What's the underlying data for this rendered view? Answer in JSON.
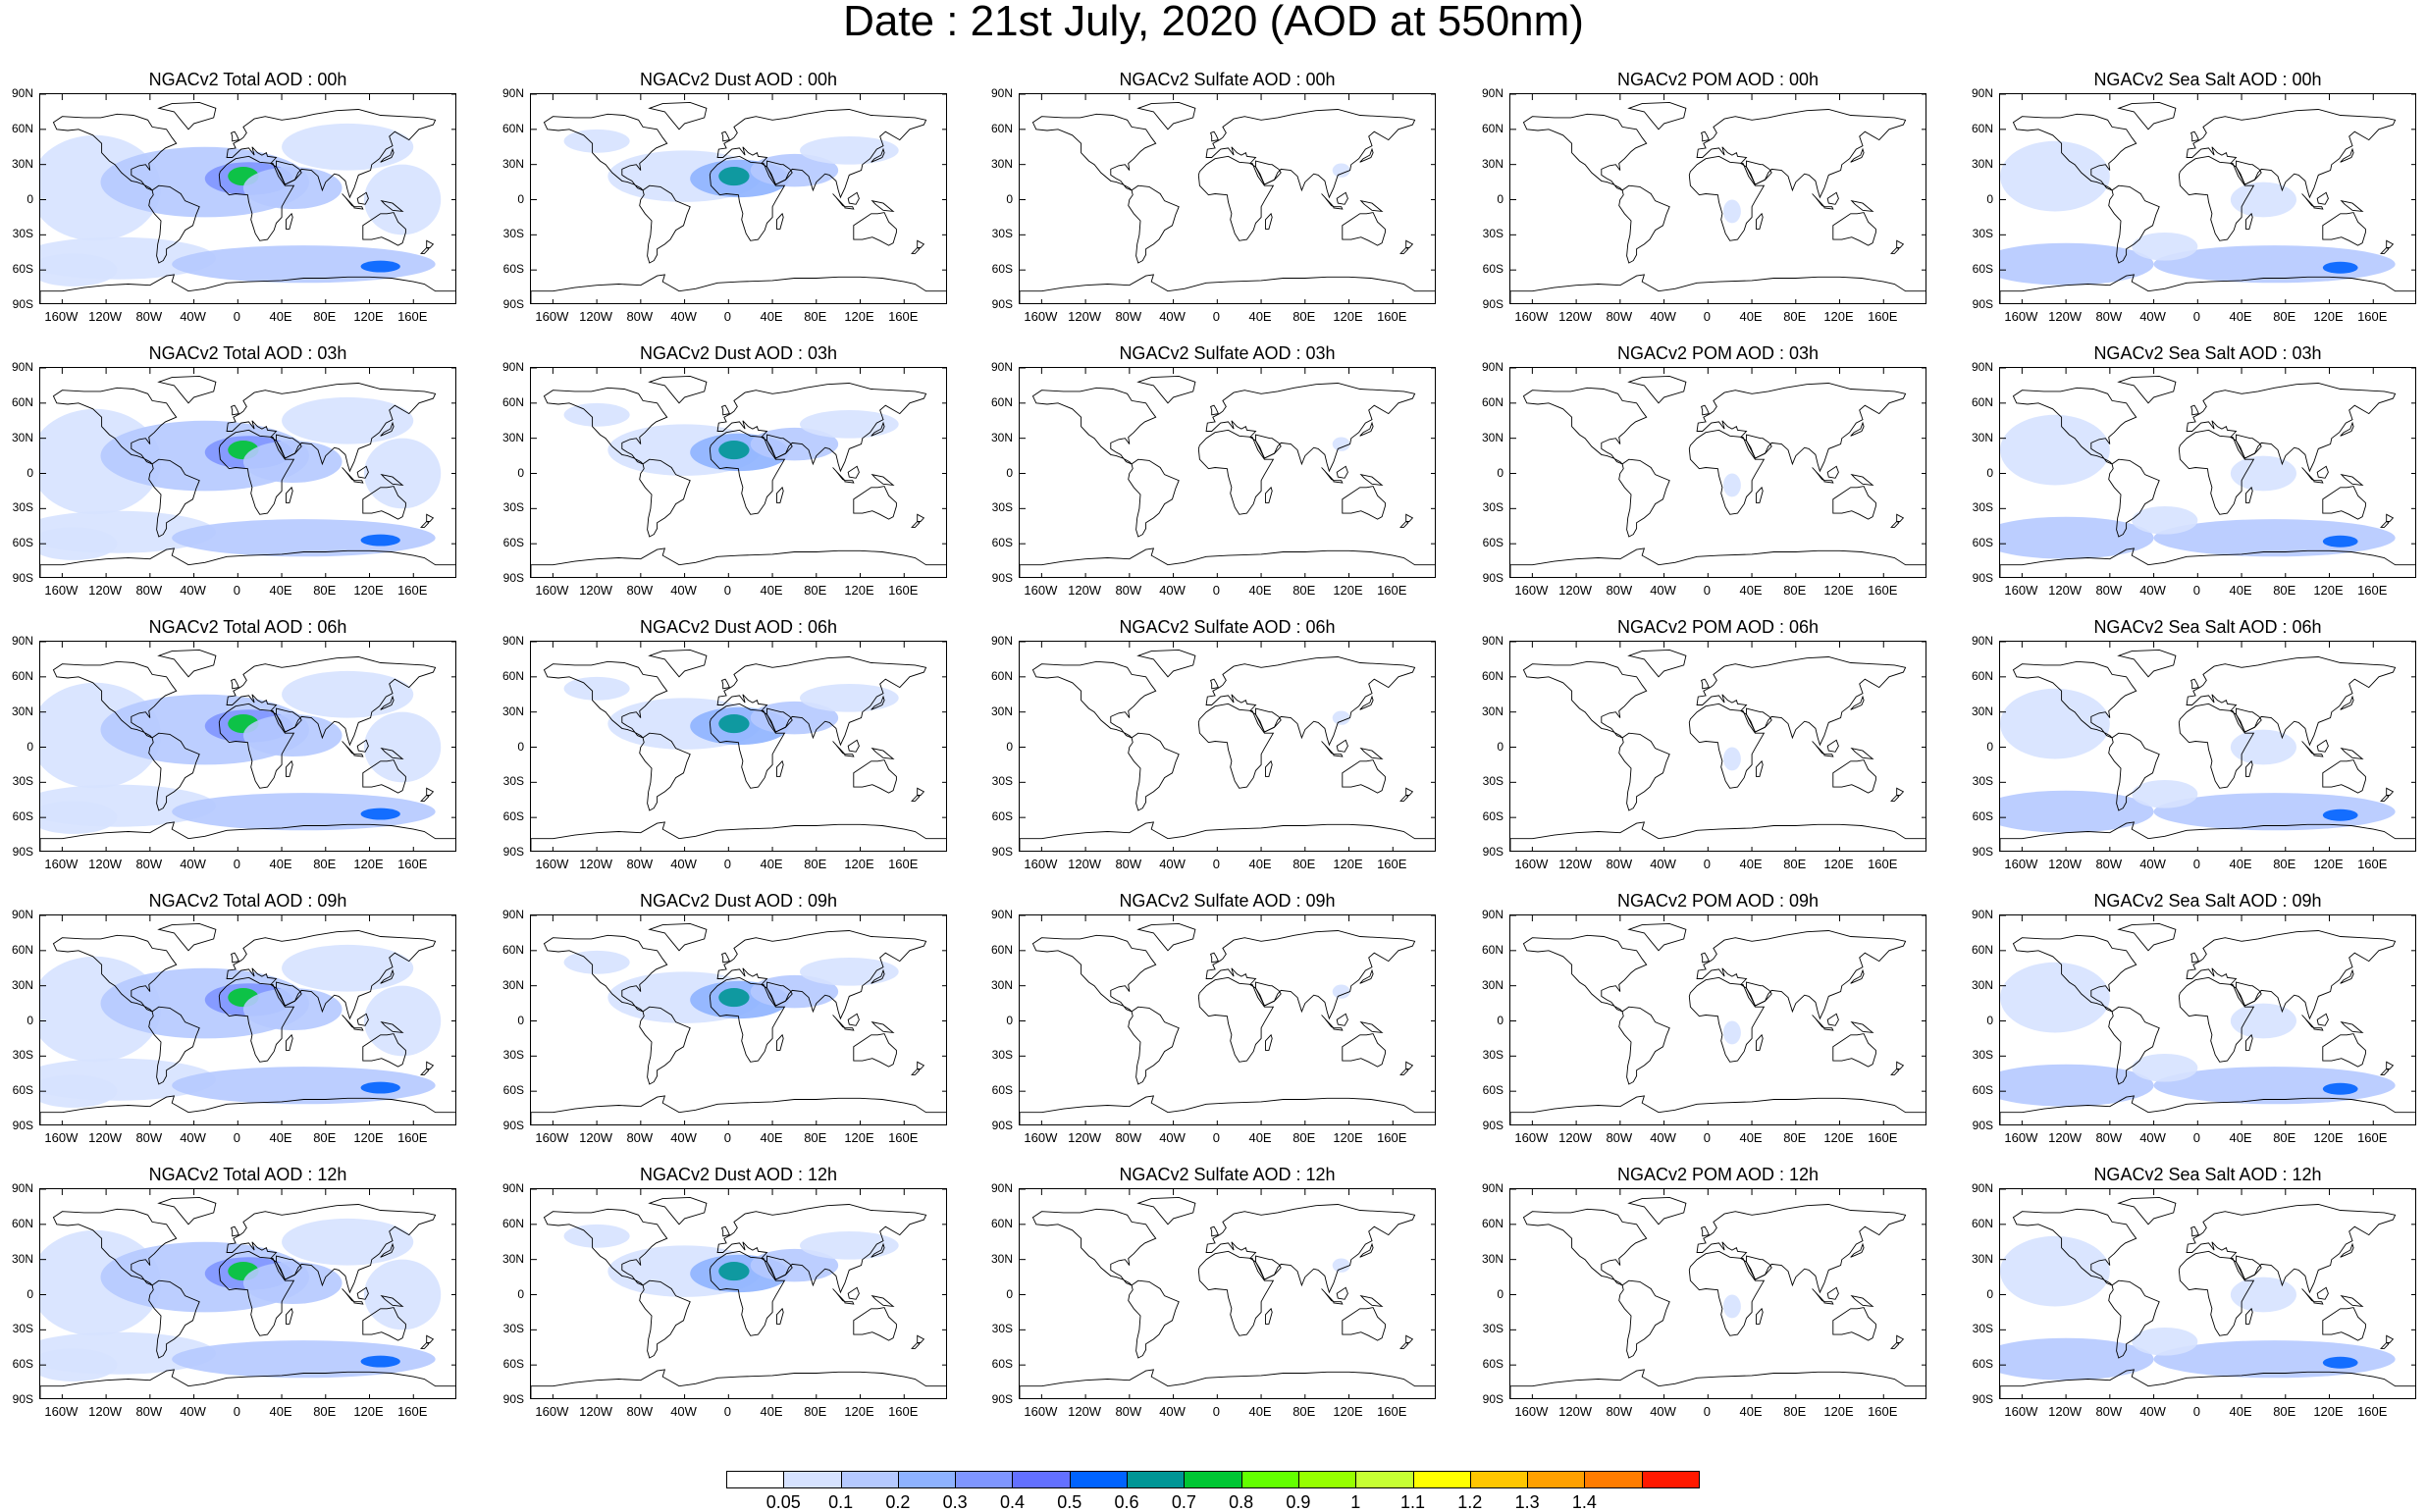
{
  "title": "Date : 21st July, 2020 (AOD at 550nm)",
  "lat_ticks": [
    "90N",
    "60N",
    "30N",
    "0",
    "30S",
    "60S",
    "90S"
  ],
  "lat_values": [
    90,
    60,
    30,
    0,
    -30,
    -60,
    -90
  ],
  "lon_ticks": [
    "160W",
    "120W",
    "80W",
    "40W",
    "0",
    "40E",
    "80E",
    "120E",
    "160E"
  ],
  "lon_values": [
    -160,
    -120,
    -80,
    -40,
    0,
    40,
    80,
    120,
    160
  ],
  "colorbar": {
    "labels": [
      "0.05",
      "0.1",
      "0.2",
      "0.3",
      "0.4",
      "0.5",
      "0.6",
      "0.7",
      "0.8",
      "0.9",
      "1",
      "1.1",
      "1.2",
      "1.3",
      "1.4"
    ],
    "colors": [
      "#ffffff",
      "#d6e2ff",
      "#b5c9ff",
      "#8eb2ff",
      "#7f96ff",
      "#6370ff",
      "#0063ff",
      "#009696",
      "#00c633",
      "#63ff00",
      "#96ff00",
      "#c6ff33",
      "#ffff00",
      "#ffc600",
      "#ffa000",
      "#ff7c00",
      "#ff1900"
    ]
  },
  "panels": [
    [
      {
        "title": "NGACv2 Total AOD : 00h",
        "species": "total"
      },
      {
        "title": "NGACv2 Dust AOD : 00h",
        "species": "dust"
      },
      {
        "title": "NGACv2 Sulfate AOD : 00h",
        "species": "sulfate"
      },
      {
        "title": "NGACv2 POM AOD : 00h",
        "species": "pom"
      },
      {
        "title": "NGACv2 Sea Salt AOD : 00h",
        "species": "seasalt"
      }
    ],
    [
      {
        "title": "NGACv2 Total AOD : 03h",
        "species": "total"
      },
      {
        "title": "NGACv2 Dust AOD : 03h",
        "species": "dust"
      },
      {
        "title": "NGACv2 Sulfate AOD : 03h",
        "species": "sulfate"
      },
      {
        "title": "NGACv2 POM AOD : 03h",
        "species": "pom"
      },
      {
        "title": "NGACv2 Sea Salt AOD : 03h",
        "species": "seasalt"
      }
    ],
    [
      {
        "title": "NGACv2 Total AOD : 06h",
        "species": "total"
      },
      {
        "title": "NGACv2 Dust AOD : 06h",
        "species": "dust"
      },
      {
        "title": "NGACv2 Sulfate AOD : 06h",
        "species": "sulfate"
      },
      {
        "title": "NGACv2 POM AOD : 06h",
        "species": "pom"
      },
      {
        "title": "NGACv2 Sea Salt AOD : 06h",
        "species": "seasalt"
      }
    ],
    [
      {
        "title": "NGACv2 Total AOD : 09h",
        "species": "total"
      },
      {
        "title": "NGACv2 Dust AOD : 09h",
        "species": "dust"
      },
      {
        "title": "NGACv2 Sulfate AOD : 09h",
        "species": "sulfate"
      },
      {
        "title": "NGACv2 POM AOD : 09h",
        "species": "pom"
      },
      {
        "title": "NGACv2 Sea Salt  AOD : 09h",
        "species": "seasalt"
      }
    ],
    [
      {
        "title": "NGACv2 Total AOD : 12h",
        "species": "total"
      },
      {
        "title": "NGACv2 Dust AOD : 12h",
        "species": "dust"
      },
      {
        "title": "NGACv2 Sulfate AOD : 12h",
        "species": "sulfate"
      },
      {
        "title": "NGACv2 POM  AOD : 12h",
        "species": "pom"
      },
      {
        "title": "NGACv2 Sea Salt  AOD : 12h",
        "species": "seasalt"
      }
    ]
  ]
}
